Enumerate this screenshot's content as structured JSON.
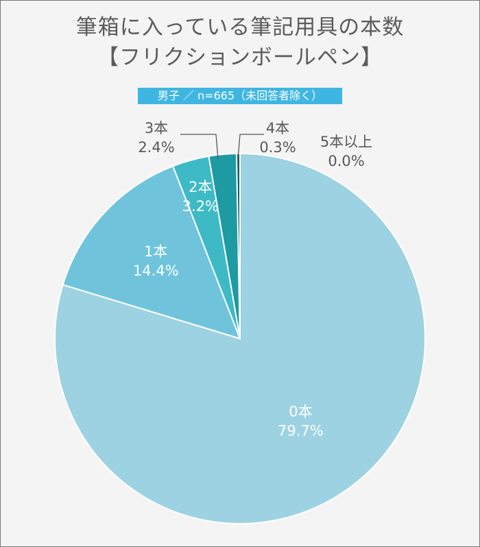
{
  "title": {
    "line1": "筆箱に入っている筆記用具の本数",
    "line2": "【フリクションボールペン】"
  },
  "subtitle": "男子 ／ n=665（未回答者除く）",
  "colors": {
    "badge": "#3fb6e2",
    "slices": [
      "#9dd2e2",
      "#6fc4dc",
      "#3dbac6",
      "#1e9aa3",
      "#135e63",
      "#0c3f43"
    ]
  },
  "chart_data": {
    "type": "pie",
    "start": "12 o'clock",
    "direction": "clockwise",
    "categories": [
      "0本",
      "1本",
      "2本",
      "3本",
      "4本",
      "5本以上"
    ],
    "values": [
      79.7,
      14.4,
      3.2,
      2.4,
      0.3,
      0.0
    ],
    "value_labels": [
      "79.7%",
      "14.4%",
      "3.2%",
      "2.4%",
      "0.3%",
      "0.0%"
    ],
    "unit": "%"
  }
}
